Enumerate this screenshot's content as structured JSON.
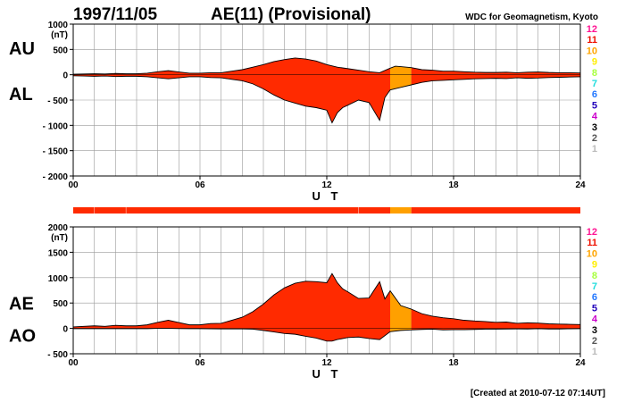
{
  "header": {
    "date": "1997/11/05",
    "title": "AE(11) (Provisional)",
    "source": "WDC for Geomagnetism, Kyoto"
  },
  "footer": {
    "created": "[Created at 2010-07-12 07:14UT]"
  },
  "colors": {
    "fill_main": "#ff3311",
    "fill_count10": "#ffa000",
    "fill_count11": "#ff2a00",
    "curve": "#000000",
    "grid": "#9a9a9a"
  },
  "station_counts": {
    "labels": [
      "12",
      "11",
      "10",
      "9",
      "8",
      "7",
      "6",
      "5",
      "4",
      "3",
      "2",
      "1"
    ],
    "colors": [
      "#ff1493",
      "#ee1100",
      "#ffa500",
      "#ffee00",
      "#a8ff40",
      "#22dddd",
      "#2277ff",
      "#2200bb",
      "#cc00cc",
      "#000000",
      "#555555",
      "#bbbbbb"
    ]
  },
  "chart_data": [
    {
      "id": "au-al",
      "type": "area",
      "title": "AE(11) (Provisional)",
      "side_labels": [
        "AU",
        "AL"
      ],
      "unit_label": "(nT)",
      "xlabel": "U T",
      "xlim": [
        0,
        24
      ],
      "xticks": [
        0,
        6,
        12,
        18,
        24
      ],
      "xtick_labels": [
        "00",
        "06",
        "12",
        "18",
        "24"
      ],
      "ylim": [
        -2000,
        1000
      ],
      "yticks": [
        1000,
        500,
        0,
        -500,
        -1000,
        -1500,
        -2000
      ],
      "ytick_labels": [
        "1000",
        "500",
        "0",
        "- 500",
        "- 1000",
        "- 1500",
        "- 2000"
      ],
      "grid": true,
      "series": [
        {
          "name": "AU",
          "x": [
            0,
            0.5,
            1,
            1.5,
            2,
            2.5,
            3,
            3.5,
            4,
            4.5,
            5,
            5.5,
            6,
            6.5,
            7,
            7.5,
            8,
            8.5,
            9,
            9.5,
            10,
            10.5,
            11,
            11.5,
            12,
            12.5,
            13,
            13.5,
            14,
            14.5,
            15,
            15.25,
            15.5,
            16,
            16.5,
            17,
            17.5,
            18,
            18.5,
            19,
            19.5,
            20,
            20.5,
            21,
            21.5,
            22,
            22.5,
            23,
            23.5,
            24
          ],
          "y": [
            10,
            15,
            20,
            15,
            25,
            20,
            20,
            30,
            60,
            80,
            55,
            30,
            30,
            40,
            40,
            70,
            100,
            150,
            200,
            260,
            300,
            330,
            310,
            270,
            200,
            150,
            120,
            90,
            60,
            40,
            130,
            170,
            160,
            140,
            100,
            90,
            70,
            70,
            60,
            50,
            45,
            45,
            50,
            40,
            50,
            55,
            45,
            40,
            40,
            35
          ]
        },
        {
          "name": "AL",
          "x": [
            0,
            0.5,
            1,
            1.5,
            2,
            2.5,
            3,
            3.5,
            4,
            4.5,
            5,
            5.5,
            6,
            6.5,
            7,
            7.5,
            8,
            8.5,
            9,
            9.5,
            10,
            10.5,
            11,
            11.5,
            12,
            12.25,
            12.5,
            12.75,
            13,
            13.5,
            14,
            14.5,
            14.75,
            15,
            15.5,
            16,
            16.5,
            17,
            17.5,
            18,
            18.5,
            19,
            19.5,
            20,
            20.5,
            21,
            21.5,
            22,
            22.5,
            23,
            23.5,
            24
          ],
          "y": [
            -20,
            -25,
            -30,
            -25,
            -35,
            -30,
            -30,
            -40,
            -60,
            -80,
            -60,
            -40,
            -40,
            -55,
            -60,
            -90,
            -120,
            -180,
            -280,
            -400,
            -500,
            -560,
            -620,
            -650,
            -700,
            -950,
            -750,
            -650,
            -600,
            -500,
            -550,
            -900,
            -450,
            -300,
            -250,
            -200,
            -150,
            -120,
            -110,
            -100,
            -90,
            -80,
            -75,
            -70,
            -75,
            -60,
            -70,
            -65,
            -55,
            -50,
            -45,
            -40
          ]
        }
      ],
      "count_segments": [
        {
          "from": 0,
          "to": 15,
          "count": 11
        },
        {
          "from": 15,
          "to": 16,
          "count": 10
        },
        {
          "from": 16,
          "to": 24,
          "count": 11
        }
      ]
    },
    {
      "id": "ae-ao",
      "type": "area",
      "side_labels": [
        "AE",
        "AO"
      ],
      "unit_label": "(nT)",
      "xlabel": "U T",
      "xlim": [
        0,
        24
      ],
      "xticks": [
        0,
        6,
        12,
        18,
        24
      ],
      "xtick_labels": [
        "00",
        "06",
        "12",
        "18",
        "24"
      ],
      "ylim": [
        -500,
        2000
      ],
      "yticks": [
        2000,
        1500,
        1000,
        500,
        0,
        -500
      ],
      "ytick_labels": [
        "2000",
        "1500",
        "1000",
        "500",
        "0",
        "- 500"
      ],
      "grid": true,
      "series": [
        {
          "name": "AE",
          "x": [
            0,
            0.5,
            1,
            1.5,
            2,
            2.5,
            3,
            3.5,
            4,
            4.5,
            5,
            5.5,
            6,
            6.5,
            7,
            7.5,
            8,
            8.5,
            9,
            9.5,
            10,
            10.5,
            11,
            11.5,
            12,
            12.25,
            12.5,
            12.75,
            13,
            13.5,
            14,
            14.5,
            14.75,
            15,
            15.5,
            16,
            16.5,
            17,
            17.5,
            18,
            18.5,
            19,
            19.5,
            20,
            20.5,
            21,
            21.5,
            22,
            22.5,
            23,
            23.5,
            24
          ],
          "y": [
            30,
            40,
            50,
            40,
            60,
            50,
            50,
            70,
            120,
            160,
            115,
            70,
            70,
            95,
            100,
            160,
            220,
            330,
            480,
            660,
            800,
            890,
            930,
            920,
            900,
            1080,
            900,
            780,
            720,
            590,
            600,
            920,
            580,
            740,
            450,
            380,
            290,
            240,
            210,
            190,
            160,
            145,
            135,
            120,
            125,
            100,
            110,
            105,
            90,
            85,
            80,
            75
          ]
        },
        {
          "name": "AO",
          "x": [
            0,
            0.5,
            1,
            1.5,
            2,
            2.5,
            3,
            3.5,
            4,
            4.5,
            5,
            5.5,
            6,
            6.5,
            7,
            7.5,
            8,
            8.5,
            9,
            9.5,
            10,
            10.5,
            11,
            11.5,
            12,
            12.25,
            12.5,
            13,
            13.5,
            14,
            14.5,
            15,
            15.5,
            16,
            16.5,
            17,
            17.5,
            18,
            18.5,
            19,
            19.5,
            20,
            20.5,
            21,
            21.5,
            22,
            22.5,
            23,
            23.5,
            24
          ],
          "y": [
            -5,
            -5,
            -5,
            -5,
            -5,
            -5,
            -5,
            -5,
            0,
            0,
            -3,
            -5,
            -5,
            -8,
            -10,
            -10,
            -10,
            -15,
            -40,
            -70,
            -100,
            -115,
            -155,
            -190,
            -250,
            -250,
            -220,
            -180,
            -170,
            -200,
            -220,
            -65,
            -40,
            -30,
            -20,
            -15,
            -30,
            -25,
            -25,
            -20,
            -15,
            -15,
            -12,
            -10,
            -12,
            -5,
            -12,
            -12,
            -8,
            -5
          ]
        }
      ],
      "count_segments": [
        {
          "from": 0,
          "to": 15,
          "count": 11
        },
        {
          "from": 15,
          "to": 16,
          "count": 10
        },
        {
          "from": 16,
          "to": 24,
          "count": 11
        }
      ]
    }
  ]
}
